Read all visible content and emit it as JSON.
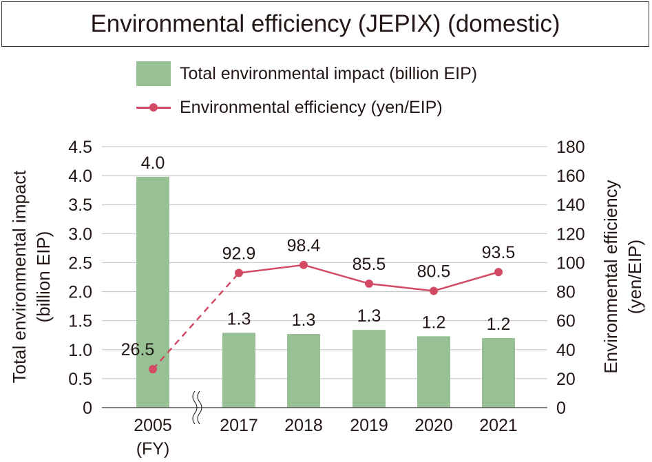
{
  "chart_data": {
    "type": "bar+line",
    "title": "Environmental efficiency (JEPIX) (domestic)",
    "categories": [
      "2005",
      "2017",
      "2018",
      "2019",
      "2020",
      "2021"
    ],
    "x_unit_label": "(FY)",
    "ylabel_left": [
      "Total environmental impact",
      "(billion EIP)"
    ],
    "ylabel_right": [
      "Environmental efficiency",
      "(yen/EIP)"
    ],
    "ylim_left": [
      0,
      4.5
    ],
    "ylim_right": [
      0,
      180
    ],
    "yticks_left": [
      "0",
      "0.5",
      "1.0",
      "1.5",
      "2.0",
      "2.5",
      "3.0",
      "3.5",
      "4.0",
      "4.5"
    ],
    "yticks_right": [
      "0",
      "20",
      "40",
      "60",
      "80",
      "100",
      "120",
      "140",
      "160",
      "180"
    ],
    "grid": true,
    "axis_break_after": "2005",
    "legend_placement": "top",
    "series": [
      {
        "name": "Total environmental impact (billion EIP)",
        "type": "bar",
        "axis": "left",
        "color": "#97c194",
        "values": [
          3.98,
          1.29,
          1.27,
          1.34,
          1.23,
          1.2
        ],
        "labels": [
          "4.0",
          "1.3",
          "1.3",
          "1.3",
          "1.2",
          "1.2"
        ]
      },
      {
        "name": "Environmental efficiency (yen/EIP)",
        "type": "line",
        "axis": "right",
        "color": "#d24a63",
        "values": [
          26.5,
          92.9,
          98.4,
          85.5,
          80.5,
          93.5
        ],
        "labels": [
          "26.5",
          "92.9",
          "98.4",
          "85.5",
          "80.5",
          "93.5"
        ],
        "dashed_segment": [
          "2005",
          "2017"
        ]
      }
    ]
  }
}
